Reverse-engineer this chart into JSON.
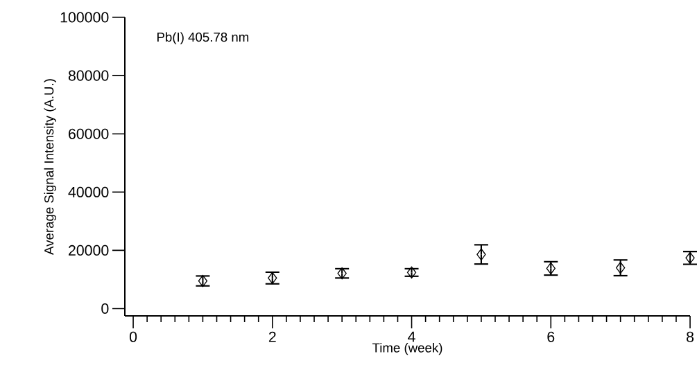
{
  "chart_data": {
    "type": "scatter",
    "xlabel": "Time (week)",
    "ylabel": "Average Signal Intensity (A.U.)",
    "annotations": [
      "Pb(I) 405.78 nm"
    ],
    "x": [
      1,
      2,
      3,
      4,
      5,
      6,
      7,
      8
    ],
    "values": [
      9500,
      10500,
      12100,
      12400,
      18600,
      13800,
      14000,
      17400
    ],
    "errors": [
      1700,
      2000,
      1600,
      1300,
      3300,
      2300,
      2700,
      2200
    ],
    "color": "#000000",
    "marker": "diamond",
    "xlim": [
      -0.12,
      8
    ],
    "ylim": [
      -2500,
      100000
    ],
    "xticks": [
      0,
      2,
      4,
      6,
      8
    ],
    "yticks": [
      0,
      20000,
      40000,
      60000,
      80000,
      100000
    ],
    "grid": false
  }
}
